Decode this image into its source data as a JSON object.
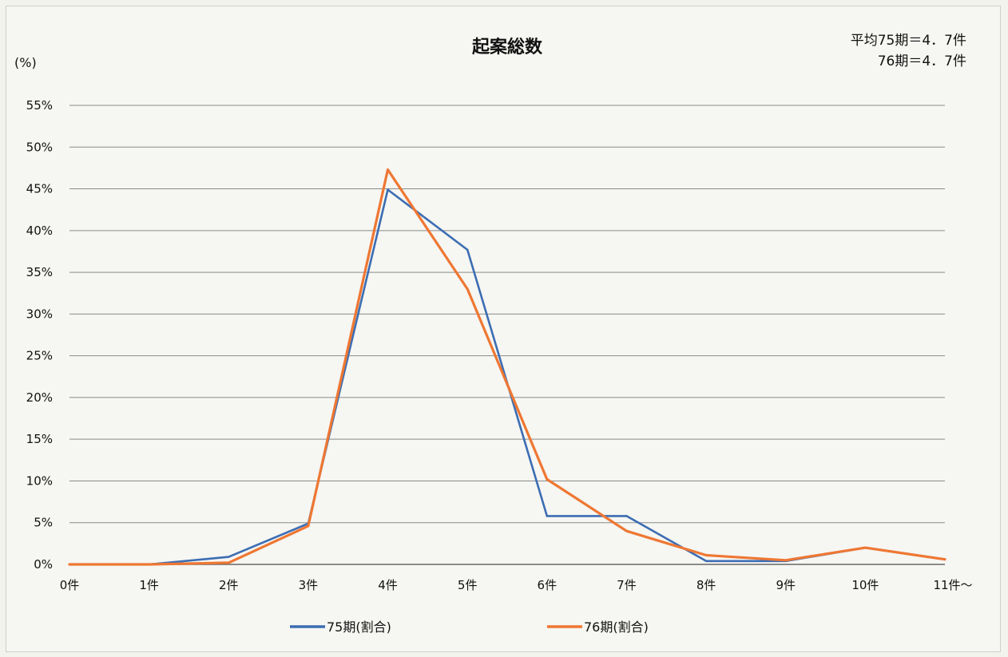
{
  "chart_data": {
    "type": "line",
    "title": "起案総数",
    "averages": [
      "平均75期＝4．7件",
      "76期＝4．7件"
    ],
    "ylabel": "(%)",
    "xlabel": "",
    "categories": [
      "0件",
      "1件",
      "2件",
      "3件",
      "4件",
      "5件",
      "6件",
      "7件",
      "8件",
      "9件",
      "10件",
      "11件～"
    ],
    "ylim": [
      0,
      55
    ],
    "yticks": [
      0,
      5,
      10,
      15,
      20,
      25,
      30,
      35,
      40,
      45,
      50,
      55
    ],
    "ytick_labels": [
      "0%",
      "5%",
      "10%",
      "15%",
      "20%",
      "25%",
      "30%",
      "35%",
      "40%",
      "45%",
      "50%",
      "55%"
    ],
    "grid": true,
    "legend_position": "bottom",
    "series": [
      {
        "name": "75期(割合)",
        "color": "#3c6db3",
        "values": [
          0,
          0,
          0.9,
          4.9,
          44.9,
          37.7,
          5.8,
          5.8,
          0.4,
          0.4,
          2.0,
          0.6
        ]
      },
      {
        "name": "76期(割合)",
        "color": "#ee7733",
        "values": [
          0,
          0,
          0.2,
          4.6,
          47.3,
          33.0,
          10.2,
          4.0,
          1.1,
          0.5,
          2.0,
          0.6
        ]
      }
    ]
  }
}
